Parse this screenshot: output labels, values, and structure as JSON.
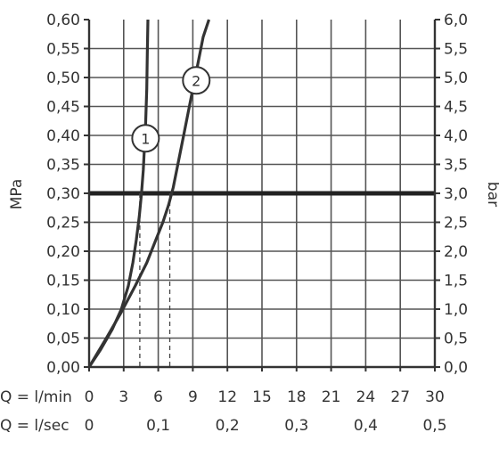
{
  "chart_data": {
    "type": "line",
    "left_axis": {
      "label": "MPa",
      "ticks": [
        "0,00",
        "0,05",
        "0,10",
        "0,15",
        "0,20",
        "0,25",
        "0,30",
        "0,35",
        "0,40",
        "0,45",
        "0,50",
        "0,55",
        "0,60"
      ],
      "range": [
        0,
        0.6
      ]
    },
    "right_axis": {
      "label": "bar",
      "ticks": [
        "0,0",
        "0,5",
        "1,0",
        "1,5",
        "2,0",
        "2,5",
        "3,0",
        "3,5",
        "4,0",
        "4,5",
        "5,0",
        "5,5",
        "6,0"
      ],
      "range": [
        0,
        6
      ]
    },
    "x_rows": [
      {
        "label": "Q = l/min",
        "ticks": [
          {
            "v": 0,
            "t": "0"
          },
          {
            "v": 3,
            "t": "3"
          },
          {
            "v": 6,
            "t": "6"
          },
          {
            "v": 9,
            "t": "9"
          },
          {
            "v": 12,
            "t": "12"
          },
          {
            "v": 15,
            "t": "15"
          },
          {
            "v": 18,
            "t": "18"
          },
          {
            "v": 21,
            "t": "21"
          },
          {
            "v": 24,
            "t": "24"
          },
          {
            "v": 27,
            "t": "27"
          },
          {
            "v": 30,
            "t": "30"
          }
        ]
      },
      {
        "label": "Q = l/sec",
        "ticks": [
          {
            "v": 0,
            "t": "0"
          },
          {
            "v": 6,
            "t": "0,1"
          },
          {
            "v": 12,
            "t": "0,2"
          },
          {
            "v": 18,
            "t": "0,3"
          },
          {
            "v": 24,
            "t": "0,4"
          },
          {
            "v": 30,
            "t": "0,5"
          }
        ]
      }
    ],
    "xlim": [
      0,
      30
    ],
    "ylim": [
      0,
      0.6
    ],
    "grid": true,
    "reference_line": {
      "y": 0.3
    },
    "series": [
      {
        "marker": "1",
        "marker_at": [
          4.9,
          0.395
        ],
        "x": [
          0,
          1,
          2,
          2.8,
          3.4,
          3.8,
          4.1,
          4.35,
          4.55,
          4.7,
          4.8,
          4.9,
          5.0,
          5.05,
          5.1
        ],
        "y": [
          0,
          0.03,
          0.065,
          0.1,
          0.14,
          0.18,
          0.22,
          0.26,
          0.3,
          0.34,
          0.38,
          0.42,
          0.48,
          0.54,
          0.6
        ],
        "drop_x": 4.4
      },
      {
        "marker": "2",
        "marker_at": [
          9.3,
          0.495
        ],
        "x": [
          0,
          1.5,
          2.8,
          4,
          5,
          5.8,
          6.4,
          6.9,
          7.3,
          7.7,
          8.2,
          8.7,
          9.3,
          9.9,
          10.4
        ],
        "y": [
          0,
          0.05,
          0.095,
          0.14,
          0.18,
          0.22,
          0.25,
          0.28,
          0.31,
          0.35,
          0.4,
          0.45,
          0.51,
          0.57,
          0.6
        ],
        "drop_x": 7.0
      }
    ]
  }
}
